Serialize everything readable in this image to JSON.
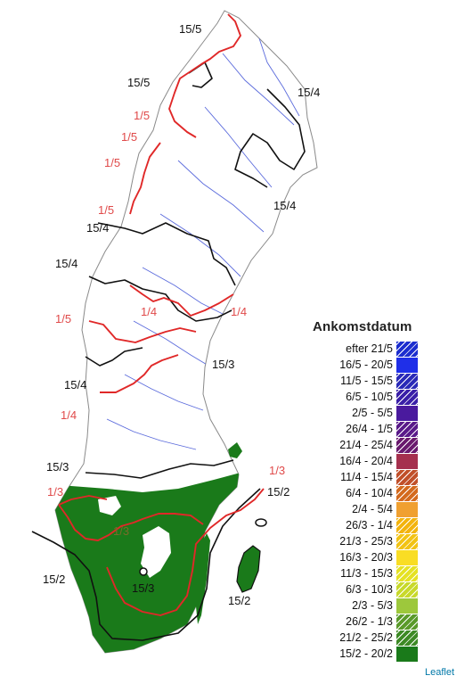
{
  "legend": {
    "title": "Ankomstdatum",
    "items": [
      {
        "label": "efter 21/5",
        "color": "#1c2ecf",
        "pattern": "hatch"
      },
      {
        "label": "16/5 - 20/5",
        "color": "#1f2fe8",
        "pattern": "solid"
      },
      {
        "label": "11/5 - 15/5",
        "color": "#2a2ab8",
        "pattern": "hatch"
      },
      {
        "label": "6/5 - 10/5",
        "color": "#3a1fa8",
        "pattern": "hatch"
      },
      {
        "label": "2/5 - 5/5",
        "color": "#4a1a9e",
        "pattern": "solid"
      },
      {
        "label": "26/4 - 1/5",
        "color": "#5a1a8a",
        "pattern": "hatch"
      },
      {
        "label": "21/4 - 25/4",
        "color": "#6a1a6e",
        "pattern": "hatch"
      },
      {
        "label": "16/4 - 20/4",
        "color": "#a5304e",
        "pattern": "solid"
      },
      {
        "label": "11/4 - 15/4",
        "color": "#c1502a",
        "pattern": "hatch"
      },
      {
        "label": "6/4 - 10/4",
        "color": "#d46a1e",
        "pattern": "hatch"
      },
      {
        "label": "2/4 - 5/4",
        "color": "#f0a030",
        "pattern": "solid"
      },
      {
        "label": "26/3 - 1/4",
        "color": "#f3b40e",
        "pattern": "hatch"
      },
      {
        "label": "21/3 - 25/3",
        "color": "#f2c315",
        "pattern": "hatch"
      },
      {
        "label": "16/3 - 20/3",
        "color": "#f9dd24",
        "pattern": "solid"
      },
      {
        "label": "11/3 - 15/3",
        "color": "#e5e225",
        "pattern": "hatch"
      },
      {
        "label": "6/3 - 10/3",
        "color": "#c8d92b",
        "pattern": "hatch"
      },
      {
        "label": "2/3 - 5/3",
        "color": "#9dc83c",
        "pattern": "solid"
      },
      {
        "label": "26/2 - 1/3",
        "color": "#5a9a2a",
        "pattern": "hatch"
      },
      {
        "label": "21/2 - 25/2",
        "color": "#3d8a25",
        "pattern": "hatch"
      },
      {
        "label": "15/2 - 20/2",
        "color": "#1a7a1a",
        "pattern": "solid"
      }
    ]
  },
  "map_labels": {
    "n1": "15/5",
    "n2": "15/5",
    "n3": "15/4",
    "n4": "15/4",
    "n5": "15/4",
    "n6": "15/4",
    "n7": "15/3",
    "n8": "15/4",
    "n9": "15/3",
    "n10": "15/2",
    "n11": "15/2",
    "n12": "15/3",
    "n13": "15/2",
    "r1": "1/5",
    "r2": "1/5",
    "r3": "1/5",
    "r4": "1/5",
    "r5": "1/5",
    "r6": "1/4",
    "r7": "1/4",
    "r8": "1/4",
    "r9": "1/3",
    "r10": "1/3",
    "o1": "1/3"
  },
  "colors": {
    "land_green": "#1a7a1a",
    "line_black": "#111111",
    "line_red": "#e02828",
    "river_blue": "#5b6bdc",
    "border_gray": "#9a9a9a"
  },
  "attribution": "Leaflet"
}
